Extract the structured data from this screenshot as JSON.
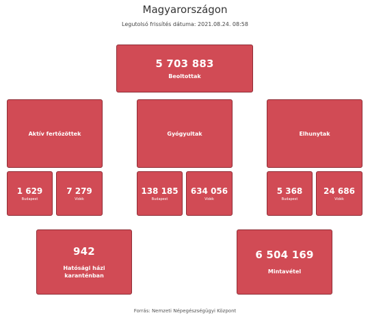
{
  "header": {
    "title": "Magyarországon",
    "subtitle": "Legutolsó frissítés dátuma: 2021.08.24. 08:58"
  },
  "vaccinated": {
    "value": "5 703 883",
    "label": "Beoltottak"
  },
  "categories": [
    {
      "label": "Aktív fertőzöttek",
      "budapest": {
        "value": "1 629",
        "label": "Budapest"
      },
      "videk": {
        "value": "7 279",
        "label": "Vidék"
      }
    },
    {
      "label": "Gyógyultak",
      "budapest": {
        "value": "138 185",
        "label": "Budapest"
      },
      "videk": {
        "value": "634 056",
        "label": "Vidék"
      }
    },
    {
      "label": "Elhunytak",
      "budapest": {
        "value": "5 368",
        "label": "Budapest"
      },
      "videk": {
        "value": "24 686",
        "label": "Vidék"
      }
    }
  ],
  "quarantine": {
    "value": "942",
    "label": "Hatósági házi karanténban"
  },
  "samples": {
    "value": "6 504 169",
    "label": "Mintavétel"
  },
  "footer": {
    "source": "Forrás: Nemzeti Népegészségügyi Központ"
  },
  "colors": {
    "card_bg": "#d14b55",
    "card_border": "#8c2a33",
    "card_text": "#ffffff"
  }
}
